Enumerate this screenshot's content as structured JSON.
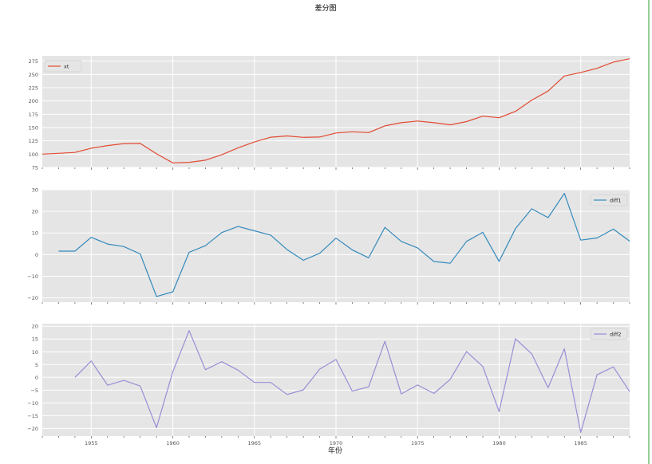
{
  "figure": {
    "title": "差分图",
    "xlabel": "年份"
  },
  "colors": {
    "xt": "#e24a33",
    "diff1": "#348abd",
    "diff2": "#988ed5",
    "panel_bg": "#e5e5e5",
    "grid": "#ffffff"
  },
  "chart_data": [
    {
      "type": "line",
      "title": "",
      "xlabel": "",
      "ylabel": "",
      "xlim": [
        1952,
        1988
      ],
      "ylim": [
        75,
        285
      ],
      "yticks": [
        75,
        100,
        125,
        150,
        175,
        200,
        225,
        250,
        275
      ],
      "ytick_labels": [
        "75",
        "100",
        "125",
        "150",
        "175",
        "200",
        "225",
        "250",
        "275"
      ],
      "grid": true,
      "legend": "top-left",
      "series": [
        {
          "name": "xt",
          "x": [
            1952,
            1953,
            1954,
            1955,
            1956,
            1957,
            1958,
            1959,
            1960,
            1961,
            1962,
            1963,
            1964,
            1965,
            1966,
            1967,
            1968,
            1969,
            1970,
            1971,
            1972,
            1973,
            1974,
            1975,
            1976,
            1977,
            1978,
            1979,
            1980,
            1981,
            1982,
            1983,
            1984,
            1985,
            1986,
            1987,
            1988
          ],
          "values": [
            100,
            101.6,
            103.2,
            111.2,
            116.1,
            119.8,
            120.1,
            100.7,
            83.5,
            84.6,
            88.7,
            98.9,
            111.9,
            122.9,
            131.9,
            134.2,
            131.6,
            132.2,
            139.8,
            142,
            140.5,
            153.1,
            159.2,
            162.3,
            159.1,
            155.1,
            161.2,
            171.5,
            168.4,
            180.4,
            201.6,
            218.7,
            247,
            253.7,
            261.4,
            273.2,
            279.4
          ]
        }
      ]
    },
    {
      "type": "line",
      "title": "",
      "xlabel": "",
      "ylabel": "",
      "xlim": [
        1952,
        1988
      ],
      "ylim": [
        -22,
        30
      ],
      "yticks": [
        -20,
        -10,
        0,
        10,
        20,
        30
      ],
      "ytick_labels": [
        "−20",
        "−10",
        "0",
        "10",
        "20",
        "30"
      ],
      "grid": true,
      "legend": "top-right",
      "series": [
        {
          "name": "diff1",
          "x": [
            1953,
            1954,
            1955,
            1956,
            1957,
            1958,
            1959,
            1960,
            1961,
            1962,
            1963,
            1964,
            1965,
            1966,
            1967,
            1968,
            1969,
            1970,
            1971,
            1972,
            1973,
            1974,
            1975,
            1976,
            1977,
            1978,
            1979,
            1980,
            1981,
            1982,
            1983,
            1984,
            1985,
            1986,
            1987,
            1988
          ],
          "values": [
            1.6,
            1.6,
            8,
            4.9,
            3.7,
            0.3,
            -19.4,
            -17.2,
            1.1,
            4.1,
            10.2,
            13,
            11,
            9,
            2.3,
            -2.6,
            0.6,
            7.6,
            2.2,
            -1.5,
            12.6,
            6.1,
            3.1,
            -3.2,
            -4,
            6.1,
            10.3,
            -3.1,
            12,
            21.2,
            17.1,
            28.3,
            6.7,
            7.7,
            11.8,
            6.2
          ]
        }
      ]
    },
    {
      "type": "line",
      "title": "",
      "xlabel": "年份",
      "ylabel": "",
      "xlim": [
        1952,
        1988
      ],
      "ylim": [
        -23,
        21
      ],
      "xticks": [
        1955,
        1960,
        1965,
        1970,
        1975,
        1980,
        1985
      ],
      "xtick_labels": [
        "1955",
        "1960",
        "1965",
        "1970",
        "1975",
        "1980",
        "1985"
      ],
      "yticks": [
        -20,
        -15,
        -10,
        -5,
        0,
        5,
        10,
        15,
        20
      ],
      "ytick_labels": [
        "−20",
        "−15",
        "−10",
        "−5",
        "0",
        "5",
        "10",
        "15",
        "20"
      ],
      "grid": true,
      "legend": "top-right",
      "series": [
        {
          "name": "diff2",
          "x": [
            1954,
            1955,
            1956,
            1957,
            1958,
            1959,
            1960,
            1961,
            1962,
            1963,
            1964,
            1965,
            1966,
            1967,
            1968,
            1969,
            1970,
            1971,
            1972,
            1973,
            1974,
            1975,
            1976,
            1977,
            1978,
            1979,
            1980,
            1981,
            1982,
            1983,
            1984,
            1985,
            1986,
            1987,
            1988
          ],
          "values": [
            0,
            6.4,
            -3.1,
            -1.2,
            -3.4,
            -19.7,
            2.2,
            18.3,
            3,
            6.1,
            2.8,
            -2,
            -2,
            -6.7,
            -4.9,
            3.2,
            7,
            -5.4,
            -3.7,
            14.1,
            -6.5,
            -3,
            -6.3,
            -0.8,
            10.1,
            4.2,
            -13.4,
            15.1,
            9.2,
            -4.1,
            11.2,
            -21.6,
            1,
            4.1,
            -5.6
          ]
        }
      ]
    }
  ]
}
